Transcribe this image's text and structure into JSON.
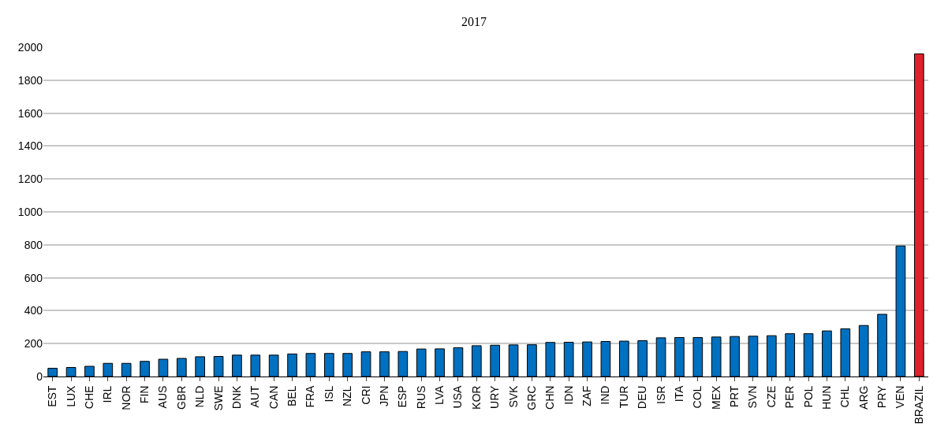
{
  "chart_data": {
    "type": "bar",
    "title": "2017",
    "categories": [
      "EST",
      "LUX",
      "CHE",
      "IRL",
      "NOR",
      "FIN",
      "AUS",
      "GBR",
      "NLD",
      "SWE",
      "DNK",
      "AUT",
      "CAN",
      "BEL",
      "FRA",
      "ISL",
      "NZL",
      "CRI",
      "JPN",
      "ESP",
      "RUS",
      "LVA",
      "USA",
      "KOR",
      "URY",
      "SVK",
      "GRC",
      "CHN",
      "IDN",
      "ZAF",
      "IND",
      "TUR",
      "DEU",
      "ISR",
      "ITA",
      "COL",
      "MEX",
      "PRT",
      "SVN",
      "CZE",
      "PER",
      "POL",
      "HUN",
      "CHL",
      "ARG",
      "PRY",
      "VEN",
      "BRAZIL"
    ],
    "values": [
      50,
      55,
      62,
      80,
      80,
      92,
      105,
      110,
      120,
      122,
      130,
      130,
      130,
      137,
      140,
      140,
      140,
      150,
      150,
      152,
      167,
      168,
      175,
      187,
      190,
      192,
      193,
      207,
      208,
      210,
      213,
      215,
      218,
      235,
      237,
      237,
      240,
      243,
      245,
      248,
      260,
      260,
      277,
      290,
      310,
      378,
      793,
      1960
    ],
    "colors": [
      "#0070c0",
      "#0070c0",
      "#0070c0",
      "#0070c0",
      "#0070c0",
      "#0070c0",
      "#0070c0",
      "#0070c0",
      "#0070c0",
      "#0070c0",
      "#0070c0",
      "#0070c0",
      "#0070c0",
      "#0070c0",
      "#0070c0",
      "#0070c0",
      "#0070c0",
      "#0070c0",
      "#0070c0",
      "#0070c0",
      "#0070c0",
      "#0070c0",
      "#0070c0",
      "#0070c0",
      "#0070c0",
      "#0070c0",
      "#0070c0",
      "#0070c0",
      "#0070c0",
      "#0070c0",
      "#0070c0",
      "#0070c0",
      "#0070c0",
      "#0070c0",
      "#0070c0",
      "#0070c0",
      "#0070c0",
      "#0070c0",
      "#0070c0",
      "#0070c0",
      "#0070c0",
      "#0070c0",
      "#0070c0",
      "#0070c0",
      "#0070c0",
      "#0070c0",
      "#0070c0",
      "#e0202a"
    ],
    "ylim": [
      0,
      2000
    ],
    "yticks": [
      0,
      200,
      400,
      600,
      800,
      1000,
      1200,
      1400,
      1600,
      1800,
      2000
    ],
    "grid": "y"
  }
}
